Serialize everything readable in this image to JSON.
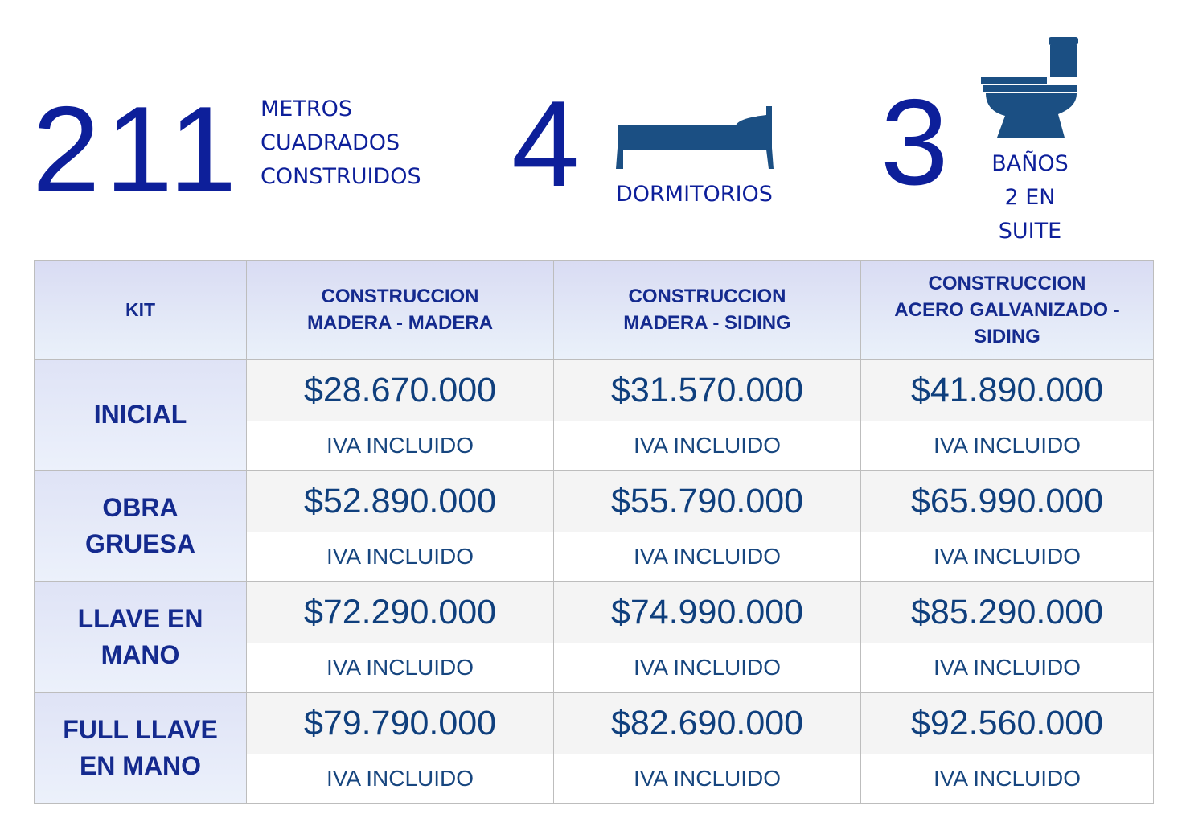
{
  "stats": {
    "area": {
      "value": "211",
      "label_lines": [
        "METROS",
        "CUADRADOS",
        "CONSTRUIDOS"
      ]
    },
    "bedrooms": {
      "value": "4",
      "label": "DORMITORIOS",
      "icon": "bed-icon"
    },
    "bathrooms": {
      "value": "3",
      "label_lines": [
        "BAÑOS",
        "2 EN",
        "SUITE"
      ],
      "icon": "toilet-icon"
    }
  },
  "colors": {
    "accent": "#0d1f9a",
    "icon": "#1b4f83",
    "price": "#0f3f7d"
  },
  "table": {
    "headers": [
      "KIT",
      "CONSTRUCCION\nMADERA - MADERA",
      "CONSTRUCCION\nMADERA - SIDING",
      "CONSTRUCCION\nACERO GALVANIZADO -\nSIDING"
    ],
    "rows": [
      {
        "kit": "INICIAL",
        "prices": [
          "$28.670.000",
          "$31.570.000",
          "$41.890.000"
        ],
        "notes": [
          "IVA INCLUIDO",
          "IVA INCLUIDO",
          "IVA INCLUIDO"
        ]
      },
      {
        "kit": "OBRA\nGRUESA",
        "prices": [
          "$52.890.000",
          "$55.790.000",
          "$65.990.000"
        ],
        "notes": [
          "IVA INCLUIDO",
          "IVA INCLUIDO",
          "IVA INCLUIDO"
        ]
      },
      {
        "kit": "LLAVE EN\nMANO",
        "prices": [
          "$72.290.000",
          "$74.990.000",
          "$85.290.000"
        ],
        "notes": [
          "IVA INCLUIDO",
          "IVA INCLUIDO",
          "IVA INCLUIDO"
        ]
      },
      {
        "kit": "FULL LLAVE\nEN MANO",
        "prices": [
          "$79.790.000",
          "$82.690.000",
          "$92.560.000"
        ],
        "notes": [
          "IVA INCLUIDO",
          "IVA INCLUIDO",
          "IVA INCLUIDO"
        ]
      }
    ]
  }
}
